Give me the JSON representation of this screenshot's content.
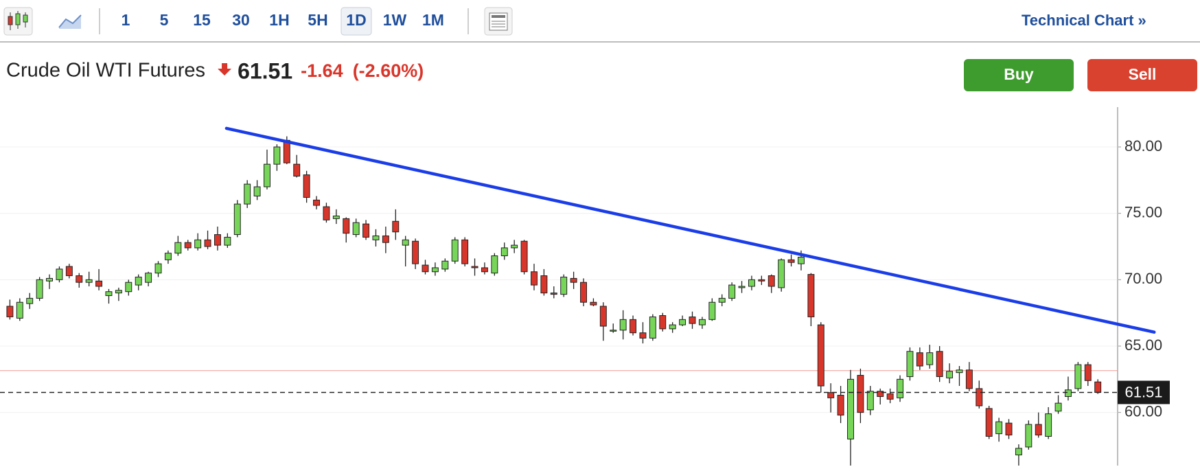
{
  "toolbar": {
    "intervals": [
      "1",
      "5",
      "15",
      "30",
      "1H",
      "5H",
      "1D",
      "1W",
      "1M"
    ],
    "selected": "1D",
    "link": "Technical Chart »"
  },
  "header": {
    "title": "Crude Oil WTI Futures",
    "change": -1.64,
    "change_pct": {
      "value": -2.6,
      "label": "(-2.60%)"
    }
  },
  "buttons": [
    "Buy",
    "Sell"
  ],
  "chart_data": {
    "type": "candlestick",
    "up_color": "#77d65a",
    "down_color": "#d9362b",
    "xlim": [
      -1,
      112
    ],
    "ylim": [
      56,
      83
    ],
    "yticks": [
      {
        "value": 60,
        "label": "60.00"
      },
      {
        "value": 65,
        "label": "65.00"
      },
      {
        "value": 70,
        "label": "70.00"
      },
      {
        "value": 75,
        "label": "75.00"
      },
      {
        "value": 80,
        "label": "80.00"
      }
    ],
    "grid": true,
    "last_price": 61.51,
    "prev_close": 63.15,
    "trendline": {
      "x": [
        21.9,
        115.7
      ],
      "y": [
        81.4,
        66.05
      ],
      "color": "#1a3de8"
    },
    "candles": [
      [
        68.0,
        68.5,
        67.0,
        67.2
      ],
      [
        67.1,
        68.6,
        66.9,
        68.3
      ],
      [
        68.2,
        69.0,
        67.8,
        68.6
      ],
      [
        68.6,
        70.2,
        68.4,
        70.0
      ],
      [
        69.9,
        70.4,
        69.3,
        70.1
      ],
      [
        70.0,
        71.0,
        69.8,
        70.8
      ],
      [
        71.0,
        71.2,
        70.1,
        70.3
      ],
      [
        70.3,
        70.5,
        69.4,
        69.8
      ],
      [
        69.8,
        70.6,
        69.5,
        70.0
      ],
      [
        69.9,
        70.8,
        69.2,
        69.5
      ],
      [
        68.8,
        69.3,
        68.2,
        69.1
      ],
      [
        69.0,
        69.4,
        68.4,
        69.2
      ],
      [
        69.1,
        70.0,
        68.8,
        69.8
      ],
      [
        69.6,
        70.4,
        69.2,
        70.2
      ],
      [
        69.8,
        70.6,
        69.5,
        70.5
      ],
      [
        70.5,
        71.4,
        70.2,
        71.2
      ],
      [
        71.5,
        72.2,
        71.2,
        72.0
      ],
      [
        72.0,
        73.3,
        71.8,
        72.8
      ],
      [
        72.8,
        73.0,
        72.2,
        72.4
      ],
      [
        72.4,
        73.5,
        72.2,
        73.0
      ],
      [
        73.0,
        73.7,
        72.3,
        72.5
      ],
      [
        73.4,
        74.0,
        72.2,
        72.6
      ],
      [
        72.6,
        73.5,
        72.4,
        73.2
      ],
      [
        73.4,
        76.0,
        73.2,
        75.7
      ],
      [
        75.7,
        77.5,
        75.4,
        77.2
      ],
      [
        76.3,
        77.5,
        76.0,
        77.0
      ],
      [
        77.0,
        79.8,
        76.8,
        78.7
      ],
      [
        78.7,
        80.2,
        78.2,
        80.0
      ],
      [
        80.5,
        80.8,
        78.7,
        78.8
      ],
      [
        78.7,
        79.4,
        77.7,
        77.8
      ],
      [
        77.9,
        78.2,
        75.8,
        76.2
      ],
      [
        76.0,
        76.3,
        75.3,
        75.6
      ],
      [
        75.5,
        75.8,
        74.3,
        74.5
      ],
      [
        74.6,
        75.3,
        74.2,
        74.8
      ],
      [
        74.6,
        74.7,
        72.8,
        73.5
      ],
      [
        73.4,
        74.6,
        73.2,
        74.3
      ],
      [
        74.2,
        74.5,
        73.0,
        73.2
      ],
      [
        73.0,
        73.8,
        72.5,
        73.3
      ],
      [
        73.3,
        74.0,
        72.0,
        72.8
      ],
      [
        74.4,
        75.3,
        73.0,
        73.6
      ],
      [
        72.6,
        73.3,
        71.0,
        73.0
      ],
      [
        72.9,
        73.1,
        70.8,
        71.2
      ],
      [
        71.1,
        71.5,
        70.4,
        70.6
      ],
      [
        70.6,
        71.3,
        70.3,
        70.9
      ],
      [
        70.8,
        71.6,
        70.6,
        71.4
      ],
      [
        71.4,
        73.2,
        71.2,
        73.0
      ],
      [
        73.0,
        73.2,
        71.0,
        71.2
      ],
      [
        71.0,
        71.6,
        70.3,
        70.9
      ],
      [
        70.9,
        71.3,
        70.4,
        70.6
      ],
      [
        70.5,
        72.0,
        70.3,
        71.8
      ],
      [
        71.8,
        72.8,
        71.5,
        72.4
      ],
      [
        72.4,
        73.0,
        72.0,
        72.6
      ],
      [
        72.9,
        73.0,
        70.4,
        70.6
      ],
      [
        70.6,
        71.2,
        69.2,
        69.6
      ],
      [
        70.3,
        70.8,
        68.8,
        69.0
      ],
      [
        69.0,
        69.5,
        68.6,
        68.9
      ],
      [
        68.9,
        70.4,
        68.7,
        70.2
      ],
      [
        70.1,
        70.6,
        69.3,
        69.8
      ],
      [
        69.8,
        70.1,
        68.0,
        68.3
      ],
      [
        68.3,
        68.6,
        68.0,
        68.1
      ],
      [
        68.0,
        68.3,
        65.4,
        66.5
      ],
      [
        66.2,
        66.7,
        66.0,
        66.2
      ],
      [
        66.2,
        67.7,
        65.5,
        67.0
      ],
      [
        67.0,
        67.3,
        65.8,
        66.0
      ],
      [
        66.0,
        66.8,
        65.2,
        65.6
      ],
      [
        65.6,
        67.4,
        65.4,
        67.2
      ],
      [
        67.3,
        67.5,
        66.1,
        66.3
      ],
      [
        66.3,
        66.8,
        66.0,
        66.6
      ],
      [
        66.6,
        67.3,
        66.5,
        67.0
      ],
      [
        67.2,
        67.6,
        66.3,
        66.7
      ],
      [
        66.6,
        67.2,
        66.3,
        67.0
      ],
      [
        67.0,
        68.6,
        66.9,
        68.3
      ],
      [
        68.3,
        68.9,
        68.0,
        68.6
      ],
      [
        68.6,
        69.8,
        68.4,
        69.6
      ],
      [
        69.4,
        69.9,
        69.0,
        69.5
      ],
      [
        69.5,
        70.3,
        69.2,
        70.0
      ],
      [
        70.0,
        70.3,
        69.6,
        69.9
      ],
      [
        70.3,
        70.4,
        69.0,
        69.5
      ],
      [
        69.4,
        71.6,
        69.1,
        71.5
      ],
      [
        71.5,
        71.9,
        71.0,
        71.3
      ],
      [
        71.2,
        72.2,
        70.7,
        71.7
      ],
      [
        70.4,
        70.5,
        66.5,
        67.2
      ],
      [
        66.6,
        66.8,
        61.5,
        62.0
      ],
      [
        61.5,
        62.2,
        60.0,
        61.1
      ],
      [
        61.3,
        62.0,
        59.2,
        59.8
      ],
      [
        58.0,
        63.2,
        56.0,
        62.5
      ],
      [
        62.8,
        63.3,
        59.2,
        60.0
      ],
      [
        60.2,
        62.0,
        59.8,
        61.6
      ],
      [
        61.6,
        61.8,
        60.6,
        61.2
      ],
      [
        61.4,
        61.8,
        60.7,
        61.0
      ],
      [
        61.1,
        62.8,
        60.8,
        62.5
      ],
      [
        62.7,
        64.9,
        62.4,
        64.6
      ],
      [
        64.5,
        64.9,
        63.2,
        63.5
      ],
      [
        63.6,
        65.1,
        63.3,
        64.5
      ],
      [
        64.6,
        65.0,
        62.3,
        62.7
      ],
      [
        62.6,
        63.7,
        62.2,
        63.1
      ],
      [
        63.0,
        63.5,
        62.0,
        63.2
      ],
      [
        63.2,
        63.8,
        61.6,
        61.8
      ],
      [
        61.8,
        62.4,
        60.3,
        60.5
      ],
      [
        60.3,
        60.5,
        58.0,
        58.2
      ],
      [
        58.4,
        59.6,
        57.8,
        59.3
      ],
      [
        59.2,
        59.5,
        58.0,
        58.3
      ],
      [
        56.8,
        57.6,
        56.0,
        57.3
      ],
      [
        57.4,
        59.4,
        57.2,
        59.1
      ],
      [
        59.1,
        60.0,
        58.1,
        58.3
      ],
      [
        58.2,
        60.4,
        58.0,
        59.9
      ],
      [
        60.1,
        61.3,
        59.9,
        60.7
      ],
      [
        61.2,
        62.7,
        60.9,
        61.7
      ],
      [
        61.8,
        63.8,
        61.6,
        63.6
      ],
      [
        63.6,
        63.8,
        62.0,
        62.4
      ],
      [
        62.3,
        62.5,
        61.4,
        61.51
      ]
    ]
  }
}
